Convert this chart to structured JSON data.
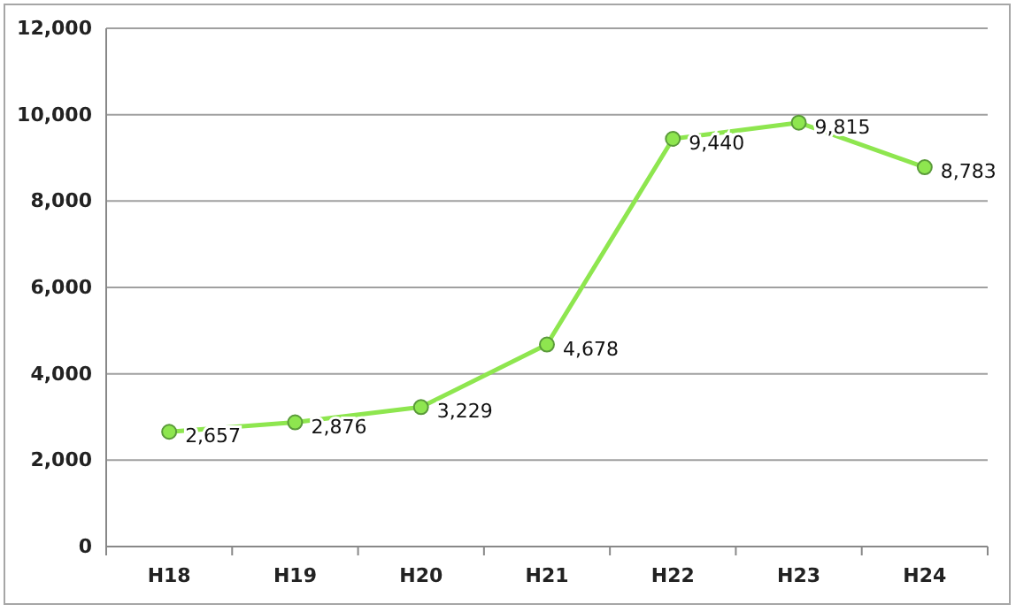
{
  "chart_data": {
    "type": "line",
    "categories": [
      "H18",
      "H19",
      "H20",
      "H21",
      "H22",
      "H23",
      "H24"
    ],
    "series": [
      {
        "color": "#8ee64f",
        "values": [
          2657,
          2876,
          3229,
          4678,
          9440,
          9815,
          8783
        ],
        "value_labels": [
          "2,657",
          "2,876",
          "3,229",
          "4,678",
          "9,440",
          "9,815",
          "8,783"
        ]
      }
    ],
    "ylim": [
      0,
      12000
    ],
    "yticks": [
      {
        "value": 0,
        "label": "0"
      },
      {
        "value": 2000,
        "label": "2,000"
      },
      {
        "value": 4000,
        "label": "4,000"
      },
      {
        "value": 6000,
        "label": "6,000"
      },
      {
        "value": 8000,
        "label": "8,000"
      },
      {
        "value": 10000,
        "label": "10,000"
      },
      {
        "value": 12000,
        "label": "12,000"
      }
    ],
    "grid": "y",
    "marker": "circle"
  }
}
